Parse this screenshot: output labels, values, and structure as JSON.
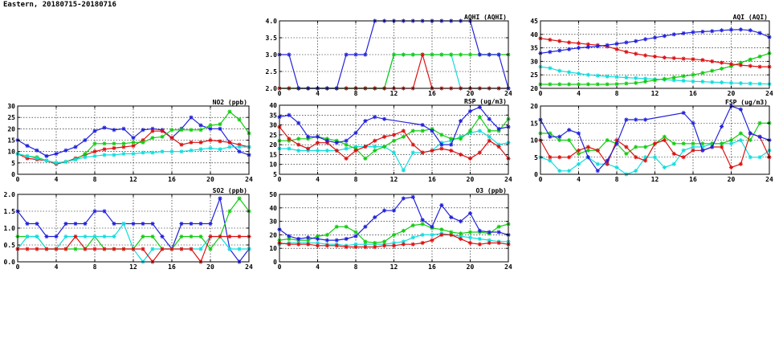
{
  "page_title": "Eastern, 20180715-20180716",
  "colors": {
    "blue": "#2222dd",
    "red": "#dd1111",
    "green": "#11cc11",
    "cyan": "#11dddd"
  },
  "chart_data": [
    {
      "id": "no2",
      "type": "line",
      "title": "NO2 (ppb)",
      "xlim": [
        0,
        24
      ],
      "ylim": [
        0,
        30
      ],
      "xticks": [
        0,
        4,
        8,
        12,
        16,
        20,
        24
      ],
      "yticks": [
        0,
        5,
        10,
        15,
        20,
        25,
        30
      ],
      "yfmt": 0,
      "grid": true,
      "series": [
        {
          "color": "blue",
          "values": [
            15,
            12.5,
            10.5,
            8,
            9,
            10.5,
            12,
            15,
            19,
            20.5,
            19.5,
            20,
            16,
            19.5,
            20,
            19.5,
            16,
            20,
            25,
            21.5,
            20,
            20,
            14,
            10,
            8.5
          ]
        },
        {
          "color": "red",
          "values": [
            9,
            7,
            6.5,
            6,
            4.5,
            5.5,
            7,
            8.5,
            10,
            11,
            11.5,
            12,
            12.5,
            15,
            19,
            19,
            16,
            13,
            14,
            14,
            15,
            14.5,
            14,
            13,
            12
          ]
        },
        {
          "color": "green",
          "values": [
            9,
            8,
            7.5,
            6,
            5,
            5.5,
            6.5,
            9,
            13.5,
            13.5,
            13.5,
            13.5,
            14,
            14,
            16,
            16.5,
            19.5,
            19.5,
            19.5,
            19.5,
            21.5,
            22,
            27.5,
            24,
            18
          ]
        },
        {
          "color": "cyan",
          "values": [
            9,
            8,
            7,
            6,
            5,
            5.5,
            6.5,
            7.5,
            8,
            8.5,
            8.5,
            9,
            9,
            9.5,
            9.5,
            10,
            10,
            10,
            10.5,
            11,
            11.5,
            11,
            12,
            12,
            12
          ]
        }
      ]
    },
    {
      "id": "so2",
      "type": "line",
      "title": "SO2 (ppb)",
      "xlim": [
        0,
        24
      ],
      "ylim": [
        0,
        2
      ],
      "xticks": [
        0,
        4,
        8,
        12,
        16,
        20,
        24
      ],
      "yticks": [
        0,
        0.5,
        1,
        1.5,
        2
      ],
      "yfmt": 1,
      "grid": true,
      "series": [
        {
          "color": "blue",
          "values": [
            1.5,
            1.13,
            1.13,
            0.75,
            0.75,
            1.13,
            1.13,
            1.13,
            1.5,
            1.5,
            1.13,
            1.13,
            1.13,
            1.13,
            1.13,
            0.75,
            0.38,
            1.13,
            1.13,
            1.13,
            1.13,
            1.88,
            0.38,
            0,
            0.38
          ]
        },
        {
          "color": "green",
          "values": [
            0.75,
            0.75,
            0.75,
            0.38,
            0.38,
            0.38,
            0.38,
            0.38,
            0.75,
            0.38,
            0.38,
            0.38,
            0.38,
            0.75,
            0.75,
            0.38,
            0.38,
            0.75,
            0.75,
            0.75,
            0.38,
            0.75,
            1.5,
            1.88,
            1.5
          ]
        },
        {
          "color": "cyan",
          "values": [
            0.38,
            0.75,
            0.75,
            0.38,
            0.38,
            0.75,
            0.75,
            0.75,
            0.75,
            0.75,
            0.75,
            1.13,
            0.38,
            0,
            0.38,
            0.38,
            0.38,
            0.38,
            0.38,
            0.38,
            0.75,
            0.75,
            0.38,
            0.38,
            0.38
          ]
        },
        {
          "color": "red",
          "values": [
            0.38,
            0.38,
            0.38,
            0.38,
            0.38,
            0.38,
            0.75,
            0.38,
            0.38,
            0.38,
            0.38,
            0.38,
            0.38,
            0.38,
            0,
            0.38,
            0.38,
            0.38,
            0.38,
            0,
            0.75,
            0.75,
            0.75,
            0.75,
            0.75
          ]
        }
      ]
    },
    {
      "id": "aqhi",
      "type": "line",
      "title": "AQHI (AQHI)",
      "xlim": [
        0,
        24
      ],
      "ylim": [
        2,
        4
      ],
      "xticks": [
        0,
        4,
        8,
        12,
        16,
        20,
        24
      ],
      "yticks": [
        2,
        2.5,
        3,
        3.5,
        4
      ],
      "yfmt": 1,
      "grid": true,
      "series": [
        {
          "color": "cyan",
          "values": [
            2,
            2,
            2,
            2,
            2,
            2,
            2,
            2,
            2,
            2,
            2,
            2,
            3,
            3,
            3,
            3,
            3,
            3,
            3,
            2,
            2,
            2,
            2,
            2,
            2
          ]
        },
        {
          "color": "green",
          "values": [
            2,
            2,
            2,
            2,
            2,
            2,
            2,
            2,
            2,
            2,
            2,
            2,
            3,
            3,
            3,
            3,
            3,
            3,
            3,
            3,
            3,
            3,
            3,
            3,
            3
          ]
        },
        {
          "color": "red",
          "values": [
            2,
            2,
            2,
            2,
            2,
            2,
            2,
            2,
            2,
            2,
            2,
            2,
            2,
            2,
            2,
            3,
            2,
            2,
            2,
            2,
            2,
            2,
            2,
            2,
            2
          ]
        },
        {
          "color": "blue",
          "values": [
            3,
            3,
            2,
            2,
            2,
            2,
            2,
            3,
            3,
            3,
            4,
            4,
            4,
            4,
            4,
            4,
            4,
            4,
            4,
            4,
            4,
            3,
            3,
            3,
            2
          ]
        }
      ]
    },
    {
      "id": "rsp",
      "type": "line",
      "title": "RSP (ug/m3)",
      "xlim": [
        0,
        24
      ],
      "ylim": [
        5,
        40
      ],
      "xticks": [
        0,
        4,
        8,
        12,
        16,
        20,
        24
      ],
      "yticks": [
        5,
        10,
        15,
        20,
        25,
        30,
        35,
        40
      ],
      "yfmt": 0,
      "grid": true,
      "series": [
        {
          "color": "cyan",
          "values": [
            18,
            18,
            17,
            17,
            17,
            17,
            17,
            18,
            19,
            19,
            19,
            19,
            16,
            7,
            16,
            16,
            17,
            21,
            22,
            24,
            26,
            27,
            24,
            20,
            21
          ]
        },
        {
          "color": "green",
          "values": [
            22,
            22,
            23,
            23,
            24,
            23,
            22,
            20,
            18,
            13,
            17,
            19,
            22,
            24,
            27,
            27,
            28,
            25,
            23,
            23,
            27,
            34,
            27,
            27,
            33
          ]
        },
        {
          "color": "red",
          "values": [
            29,
            23,
            20,
            18,
            21,
            21,
            17,
            13,
            17,
            19,
            22,
            24,
            25,
            27,
            20,
            16,
            17,
            18,
            17,
            15,
            13,
            16,
            22,
            19,
            13
          ]
        },
        {
          "color": "blue",
          "values": [
            34,
            35,
            31,
            24,
            24,
            22,
            21,
            22,
            26,
            32,
            34,
            33,
            null,
            null,
            null,
            30,
            27,
            20,
            20,
            32,
            37,
            39,
            33,
            28,
            29
          ]
        }
      ]
    },
    {
      "id": "o3",
      "type": "line",
      "title": "O3 (ppb)",
      "xlim": [
        0,
        24
      ],
      "ylim": [
        0,
        50
      ],
      "xticks": [
        0,
        4,
        8,
        12,
        16,
        20,
        24
      ],
      "yticks": [
        0,
        10,
        20,
        30,
        40,
        50
      ],
      "yfmt": 0,
      "grid": true,
      "series": [
        {
          "color": "cyan",
          "values": [
            13,
            14,
            14,
            14,
            14,
            13,
            13,
            12,
            13,
            13,
            13,
            13,
            14,
            15,
            18,
            20,
            20,
            21,
            20,
            19,
            18,
            17,
            16,
            15,
            15
          ]
        },
        {
          "color": "red",
          "values": [
            14,
            13,
            13,
            13,
            12,
            12,
            12,
            11,
            11,
            11,
            11,
            12,
            12,
            13,
            13,
            14,
            16,
            20,
            20,
            17,
            14,
            13,
            14,
            14,
            13
          ]
        },
        {
          "color": "green",
          "values": [
            16,
            17,
            16,
            16,
            19,
            20,
            26,
            26,
            22,
            15,
            14,
            15,
            20,
            23,
            27,
            28,
            25,
            24,
            22,
            21,
            22,
            22,
            21,
            26,
            28
          ]
        },
        {
          "color": "blue",
          "values": [
            24,
            19,
            17,
            18,
            17,
            16,
            16,
            17,
            19,
            26,
            33,
            38,
            38,
            47,
            48,
            31,
            26,
            42,
            33,
            30,
            36,
            23,
            22,
            22,
            20
          ]
        }
      ]
    },
    {
      "id": "aqi",
      "type": "line",
      "title": "AQI (AQI)",
      "xlim": [
        0,
        24
      ],
      "ylim": [
        20,
        45
      ],
      "xticks": [
        0,
        4,
        8,
        12,
        16,
        20,
        24
      ],
      "yticks": [
        20,
        25,
        30,
        35,
        40,
        45
      ],
      "yfmt": 0,
      "grid": true,
      "series": [
        {
          "color": "cyan",
          "values": [
            28,
            27.5,
            26.5,
            26,
            25.5,
            25,
            24.7,
            24.4,
            24.2,
            24,
            23.8,
            23.6,
            23.4,
            23.2,
            23,
            22.8,
            22.6,
            22.5,
            22.3,
            22.2,
            22,
            21.9,
            21.8,
            21.7,
            21.6
          ]
        },
        {
          "color": "green",
          "values": [
            21.5,
            21.5,
            21.5,
            21.5,
            21.5,
            21.5,
            21.5,
            21.5,
            21.6,
            21.8,
            22,
            22.5,
            23,
            23.5,
            24,
            24.5,
            25,
            25.7,
            26.5,
            27.3,
            28.2,
            29.5,
            30.7,
            31.8,
            33
          ]
        },
        {
          "color": "red",
          "values": [
            38.5,
            38,
            37.5,
            37,
            36.7,
            36.3,
            36,
            35.5,
            34.5,
            33.5,
            32.8,
            32.2,
            31.8,
            31.4,
            31.2,
            31,
            30.8,
            30.5,
            30,
            29.5,
            29,
            28.6,
            28.3,
            28,
            28
          ]
        },
        {
          "color": "blue",
          "values": [
            33,
            33.5,
            34,
            34.5,
            35,
            35.3,
            35.6,
            36,
            36.5,
            37,
            37.5,
            38.2,
            38.8,
            39.4,
            40,
            40.4,
            40.8,
            41,
            41.2,
            41.5,
            41.7,
            41.8,
            41.5,
            40.5,
            39
          ]
        }
      ]
    },
    {
      "id": "fsp",
      "type": "line",
      "title": "FSP (ug/m3)",
      "xlim": [
        0,
        24
      ],
      "ylim": [
        0,
        20
      ],
      "xticks": [
        0,
        4,
        8,
        12,
        16,
        20,
        24
      ],
      "yticks": [
        0,
        5,
        10,
        15,
        20
      ],
      "yfmt": 0,
      "grid": true,
      "series": [
        {
          "color": "cyan",
          "values": [
            5,
            4,
            1,
            1,
            3,
            5,
            3,
            3,
            2,
            0,
            1,
            5,
            5,
            2,
            3,
            7,
            8,
            8,
            9,
            9,
            9,
            10,
            5,
            5,
            7
          ]
        },
        {
          "color": "green",
          "values": [
            12,
            12,
            10,
            10,
            6,
            7,
            7,
            10,
            9,
            6,
            8,
            8,
            9,
            11,
            9,
            9,
            9,
            9,
            9,
            9,
            10,
            12,
            10,
            15,
            15
          ]
        },
        {
          "color": "red",
          "values": [
            10,
            5,
            5,
            5,
            7,
            8,
            7,
            3,
            10,
            8,
            5,
            4,
            9,
            10,
            6,
            5,
            7,
            7,
            8,
            8,
            2,
            3,
            12,
            11,
            5
          ]
        },
        {
          "color": "blue",
          "values": [
            16,
            11,
            11,
            13,
            12,
            5,
            1,
            4,
            9,
            16,
            16,
            16,
            null,
            null,
            null,
            18,
            15,
            7,
            8,
            14,
            20,
            19,
            12,
            11,
            10
          ]
        }
      ]
    }
  ]
}
